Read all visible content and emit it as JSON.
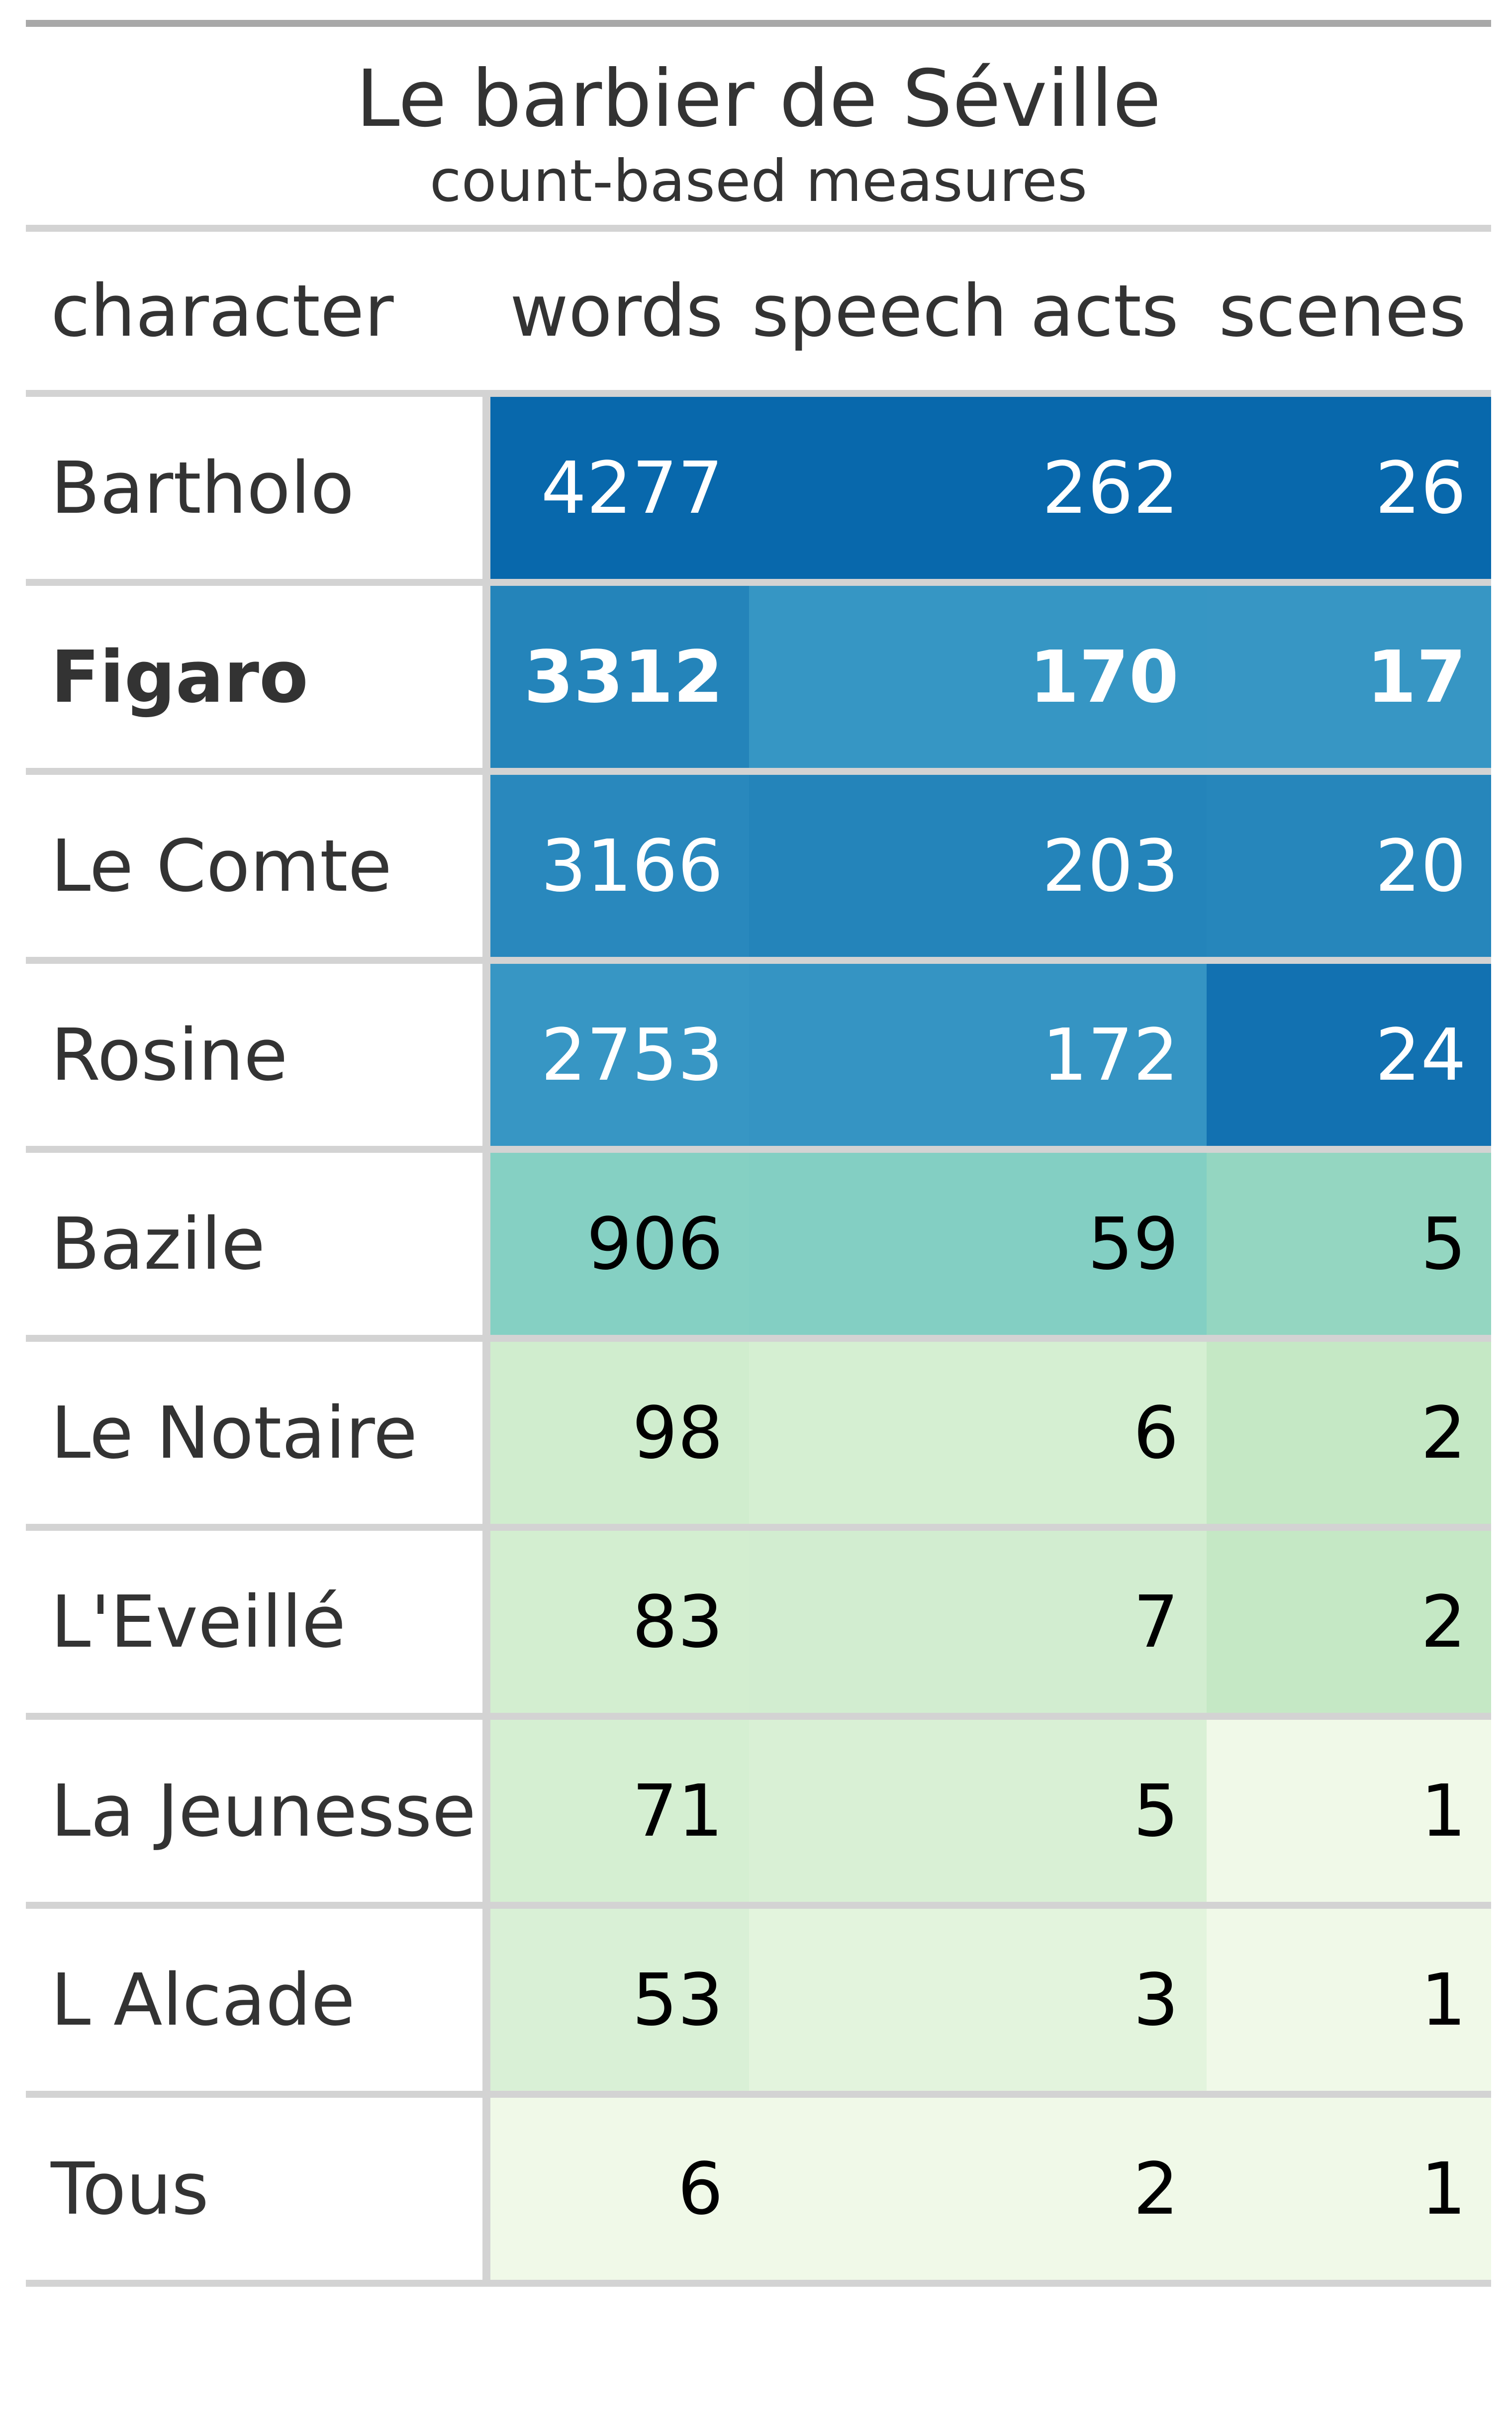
{
  "chart_data": {
    "type": "table",
    "title": "Le barbier de Séville",
    "subtitle": "count-based measures",
    "columns": [
      "character",
      "words",
      "speech acts",
      "scenes"
    ],
    "rows": [
      {
        "character": "Bartholo",
        "words": 4277,
        "speech_acts": 262,
        "scenes": 26,
        "bold": false
      },
      {
        "character": "Figaro",
        "words": 3312,
        "speech_acts": 170,
        "scenes": 17,
        "bold": true
      },
      {
        "character": "Le Comte",
        "words": 3166,
        "speech_acts": 203,
        "scenes": 20,
        "bold": false
      },
      {
        "character": "Rosine",
        "words": 2753,
        "speech_acts": 172,
        "scenes": 24,
        "bold": false
      },
      {
        "character": "Bazile",
        "words": 906,
        "speech_acts": 59,
        "scenes": 5,
        "bold": false
      },
      {
        "character": "Le Notaire",
        "words": 98,
        "speech_acts": 6,
        "scenes": 2,
        "bold": false
      },
      {
        "character": "L'Eveillé",
        "words": 83,
        "speech_acts": 7,
        "scenes": 2,
        "bold": false
      },
      {
        "character": "La Jeunesse",
        "words": 71,
        "speech_acts": 5,
        "scenes": 1,
        "bold": false
      },
      {
        "character": "L Alcade",
        "words": 53,
        "speech_acts": 3,
        "scenes": 1,
        "bold": false
      },
      {
        "character": "Tous",
        "words": 6,
        "speech_acts": 2,
        "scenes": 1,
        "bold": false
      }
    ],
    "color_scale": {
      "palette": [
        "#f0f9e8",
        "#bae4bc",
        "#7bccc4",
        "#43a2ca",
        "#0868ac"
      ],
      "dark_text_color": "#000000",
      "light_text_color": "#ffffff"
    }
  }
}
